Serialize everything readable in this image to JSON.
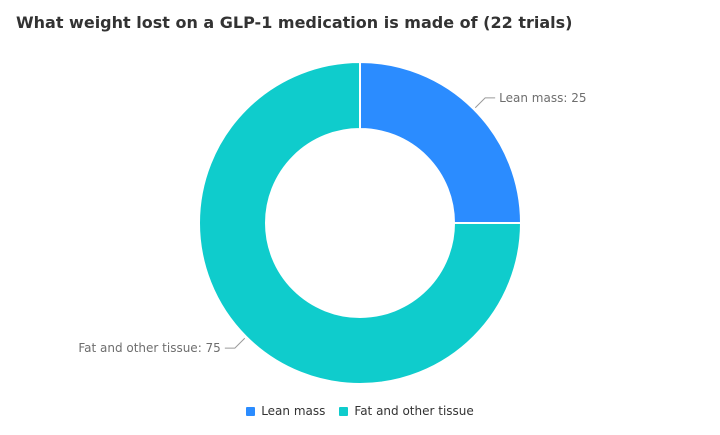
{
  "chart_data": {
    "type": "pie",
    "title": "What weight lost on a GLP-1 medication is made of (22 trials)",
    "donut": true,
    "categories": [
      "Lean mass",
      "Fat and other tissue"
    ],
    "values": [
      25,
      75
    ],
    "colors": [
      "#2b8cff",
      "#0fcccc"
    ],
    "data_labels": [
      "Lean mass: 25",
      "Fat and other tissue: 75"
    ],
    "legend": {
      "position": "bottom",
      "entries": [
        "Lean mass",
        "Fat and other tissue"
      ]
    }
  }
}
